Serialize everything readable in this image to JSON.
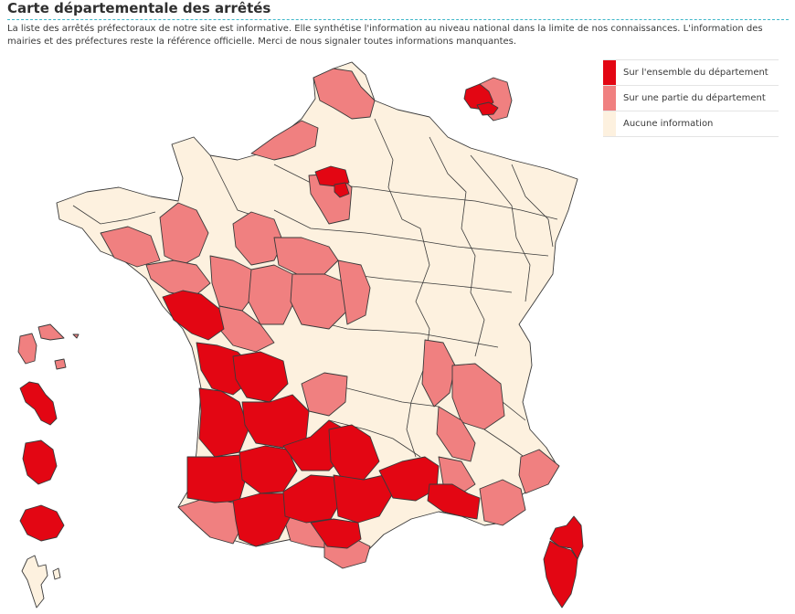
{
  "header": {
    "title": "Carte départementale des arrêtés",
    "intro": "La liste des arrêtés préfectoraux de notre site est informative. Elle synthétise l'information au niveau national dans la limite de nos connaissances. L'information des mairies et des préfectures reste la référence officielle. Merci de nous signaler toutes informations manquantes."
  },
  "legend": {
    "items": [
      {
        "label": "Sur l'ensemble du département",
        "color": "#e30613"
      },
      {
        "label": "Sur une partie du département",
        "color": "#f08080"
      },
      {
        "label": "Aucune information",
        "color": "#fdf1df"
      }
    ]
  },
  "colors": {
    "full": "#e30613",
    "partial": "#f08080",
    "none": "#fdf1df",
    "border": "#3a3a3a"
  }
}
